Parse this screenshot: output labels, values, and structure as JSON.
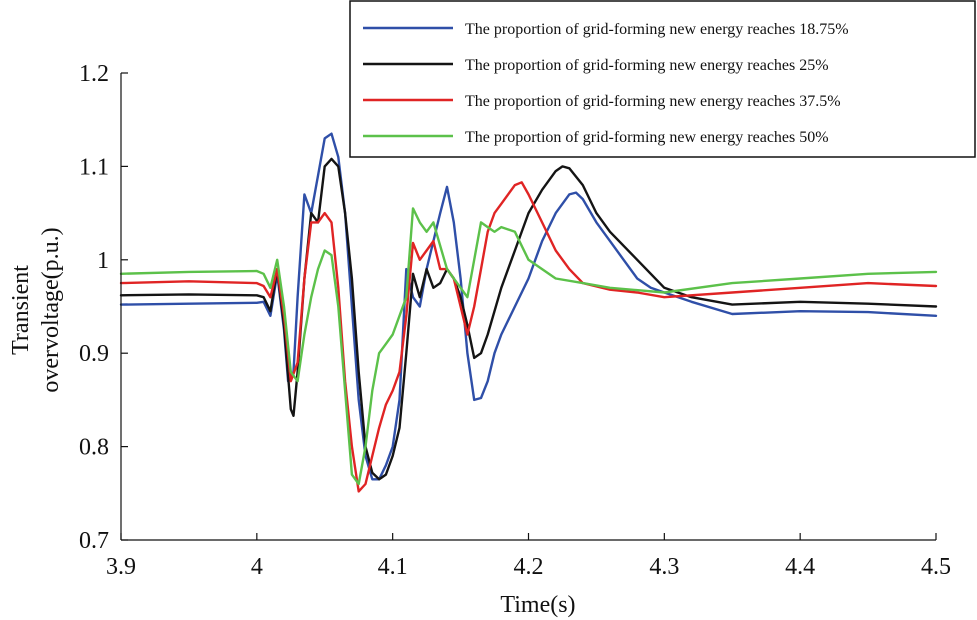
{
  "chart_data": {
    "type": "line",
    "title": "",
    "xlabel": "Time(s)",
    "ylabel_lines": [
      "Transient",
      "overvoltage(p.u.)"
    ],
    "xlim": [
      3.9,
      4.5
    ],
    "ylim": [
      0.7,
      1.2
    ],
    "xticks": [
      3.9,
      4.0,
      4.1,
      4.2,
      4.3,
      4.4,
      4.5
    ],
    "xtick_labels": [
      "3.9",
      "4",
      "4.1",
      "4.2",
      "4.3",
      "4.4",
      "4.5"
    ],
    "yticks": [
      0.7,
      0.8,
      0.9,
      1.0,
      1.1,
      1.2
    ],
    "ytick_labels": [
      "0.7",
      "0.8",
      "0.9",
      "1",
      "1.1",
      "1.2"
    ],
    "grid": false,
    "legend_position": "top-right",
    "series": [
      {
        "name": "The proportion of grid-forming new energy reaches 18.75%",
        "color": "#2f4fa8",
        "x": [
          3.9,
          3.95,
          4.0,
          4.005,
          4.01,
          4.015,
          4.02,
          4.023,
          4.027,
          4.03,
          4.035,
          4.04,
          4.045,
          4.05,
          4.055,
          4.06,
          4.065,
          4.07,
          4.075,
          4.08,
          4.085,
          4.09,
          4.095,
          4.1,
          4.105,
          4.11,
          4.115,
          4.12,
          4.125,
          4.13,
          4.135,
          4.14,
          4.145,
          4.15,
          4.155,
          4.16,
          4.165,
          4.17,
          4.175,
          4.18,
          4.19,
          4.2,
          4.21,
          4.22,
          4.23,
          4.235,
          4.24,
          4.25,
          4.26,
          4.27,
          4.28,
          4.29,
          4.3,
          4.32,
          4.35,
          4.4,
          4.45,
          4.5
        ],
        "y": [
          0.952,
          0.953,
          0.954,
          0.955,
          0.94,
          0.985,
          0.925,
          0.87,
          0.88,
          0.96,
          1.07,
          1.05,
          1.09,
          1.13,
          1.135,
          1.11,
          1.05,
          0.95,
          0.85,
          0.79,
          0.765,
          0.765,
          0.78,
          0.8,
          0.85,
          0.99,
          0.96,
          0.95,
          0.99,
          1.02,
          1.05,
          1.078,
          1.04,
          0.98,
          0.9,
          0.85,
          0.852,
          0.87,
          0.9,
          0.92,
          0.95,
          0.98,
          1.02,
          1.05,
          1.07,
          1.072,
          1.065,
          1.04,
          1.02,
          1.0,
          0.98,
          0.97,
          0.965,
          0.955,
          0.942,
          0.945,
          0.944,
          0.94
        ]
      },
      {
        "name": "The proportion of grid-forming new energy reaches 25%",
        "color": "#141414",
        "x": [
          3.9,
          3.95,
          4.0,
          4.005,
          4.01,
          4.015,
          4.02,
          4.025,
          4.027,
          4.03,
          4.035,
          4.04,
          4.045,
          4.05,
          4.055,
          4.06,
          4.065,
          4.07,
          4.075,
          4.08,
          4.085,
          4.09,
          4.095,
          4.1,
          4.105,
          4.11,
          4.115,
          4.12,
          4.125,
          4.13,
          4.135,
          4.14,
          4.145,
          4.15,
          4.155,
          4.16,
          4.165,
          4.17,
          4.18,
          4.19,
          4.2,
          4.21,
          4.22,
          4.225,
          4.23,
          4.24,
          4.25,
          4.26,
          4.28,
          4.3,
          4.32,
          4.35,
          4.4,
          4.45,
          4.5
        ],
        "y": [
          0.962,
          0.963,
          0.962,
          0.96,
          0.945,
          0.99,
          0.93,
          0.84,
          0.833,
          0.88,
          0.98,
          1.05,
          1.04,
          1.1,
          1.108,
          1.1,
          1.05,
          0.98,
          0.88,
          0.8,
          0.772,
          0.765,
          0.77,
          0.79,
          0.82,
          0.9,
          0.985,
          0.96,
          0.99,
          0.97,
          0.975,
          0.99,
          0.98,
          0.96,
          0.93,
          0.895,
          0.9,
          0.92,
          0.97,
          1.01,
          1.05,
          1.075,
          1.095,
          1.1,
          1.098,
          1.08,
          1.05,
          1.03,
          1.0,
          0.97,
          0.96,
          0.952,
          0.955,
          0.953,
          0.95
        ]
      },
      {
        "name": "The proportion of grid-forming new energy reaches 37.5%",
        "color": "#e02424",
        "x": [
          3.9,
          3.95,
          4.0,
          4.005,
          4.01,
          4.015,
          4.02,
          4.025,
          4.03,
          4.035,
          4.04,
          4.045,
          4.05,
          4.055,
          4.06,
          4.065,
          4.07,
          4.075,
          4.08,
          4.085,
          4.09,
          4.095,
          4.1,
          4.105,
          4.11,
          4.115,
          4.12,
          4.125,
          4.13,
          4.135,
          4.14,
          4.145,
          4.15,
          4.155,
          4.16,
          4.165,
          4.17,
          4.175,
          4.18,
          4.185,
          4.19,
          4.195,
          4.2,
          4.21,
          4.22,
          4.23,
          4.24,
          4.26,
          4.28,
          4.3,
          4.35,
          4.4,
          4.45,
          4.5
        ],
        "y": [
          0.975,
          0.977,
          0.975,
          0.972,
          0.96,
          0.99,
          0.94,
          0.87,
          0.89,
          0.98,
          1.04,
          1.04,
          1.05,
          1.04,
          0.97,
          0.87,
          0.8,
          0.752,
          0.76,
          0.79,
          0.82,
          0.845,
          0.86,
          0.88,
          0.94,
          1.018,
          1.0,
          1.01,
          1.02,
          0.99,
          0.99,
          0.98,
          0.95,
          0.92,
          0.95,
          0.99,
          1.03,
          1.05,
          1.06,
          1.07,
          1.08,
          1.083,
          1.07,
          1.04,
          1.01,
          0.99,
          0.975,
          0.968,
          0.965,
          0.96,
          0.965,
          0.97,
          0.975,
          0.972
        ]
      },
      {
        "name": "The proportion of grid-forming new energy reaches 50%",
        "color": "#5cc14a",
        "x": [
          3.9,
          3.95,
          4.0,
          4.005,
          4.01,
          4.015,
          4.02,
          4.025,
          4.03,
          4.035,
          4.04,
          4.045,
          4.05,
          4.055,
          4.06,
          4.065,
          4.07,
          4.075,
          4.08,
          4.085,
          4.09,
          4.095,
          4.1,
          4.105,
          4.11,
          4.115,
          4.12,
          4.125,
          4.13,
          4.14,
          4.15,
          4.155,
          4.16,
          4.165,
          4.17,
          4.175,
          4.18,
          4.19,
          4.2,
          4.22,
          4.24,
          4.26,
          4.3,
          4.35,
          4.4,
          4.45,
          4.5
        ],
        "y": [
          0.985,
          0.987,
          0.988,
          0.985,
          0.97,
          1.0,
          0.95,
          0.88,
          0.87,
          0.92,
          0.96,
          0.99,
          1.01,
          1.005,
          0.95,
          0.86,
          0.77,
          0.76,
          0.8,
          0.86,
          0.9,
          0.91,
          0.92,
          0.94,
          0.96,
          1.055,
          1.04,
          1.03,
          1.04,
          0.99,
          0.97,
          0.96,
          1.0,
          1.04,
          1.035,
          1.03,
          1.035,
          1.03,
          1.0,
          0.98,
          0.975,
          0.97,
          0.965,
          0.975,
          0.98,
          0.985,
          0.987
        ]
      }
    ]
  }
}
